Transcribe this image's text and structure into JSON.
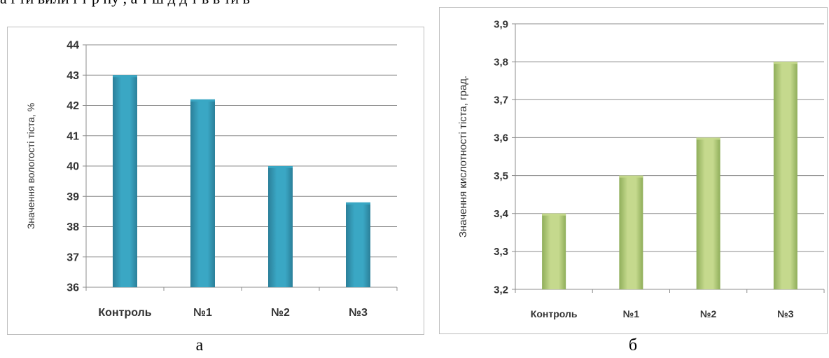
{
  "page": {
    "top_text": "а і ти вили і т р пу , а т ш д д т в в ти в"
  },
  "captions": {
    "a": "а",
    "b": "б"
  },
  "colors": {
    "bar_blue": "#3aa7c4",
    "bar_blue_dark": "#2b7f99",
    "bar_green": "#c5d98d",
    "bar_green_dark": "#8fae5a",
    "grid": "#8c8c8c"
  },
  "chart_data": [
    {
      "id": "a",
      "type": "bar",
      "categories": [
        "Контроль",
        "№1",
        "№2",
        "№3"
      ],
      "values": [
        43.0,
        42.2,
        40.0,
        38.8
      ],
      "title": "",
      "xlabel": "",
      "ylabel": "Значення вологості тіста, %",
      "ylim": [
        36,
        44
      ],
      "yticks": [
        "36",
        "37",
        "38",
        "39",
        "40",
        "41",
        "42",
        "43",
        "44"
      ],
      "grid": true
    },
    {
      "id": "b",
      "type": "bar",
      "categories": [
        "Контроль",
        "№1",
        "№2",
        "№3"
      ],
      "values": [
        3.4,
        3.5,
        3.6,
        3.8
      ],
      "title": "",
      "xlabel": "",
      "ylabel": "Значення кислотності тіста, град.",
      "ylim": [
        3.2,
        3.9
      ],
      "yticks": [
        "3,2",
        "3,3",
        "3,4",
        "3,5",
        "3,6",
        "3,7",
        "3,8",
        "3,9"
      ],
      "grid": true
    }
  ]
}
